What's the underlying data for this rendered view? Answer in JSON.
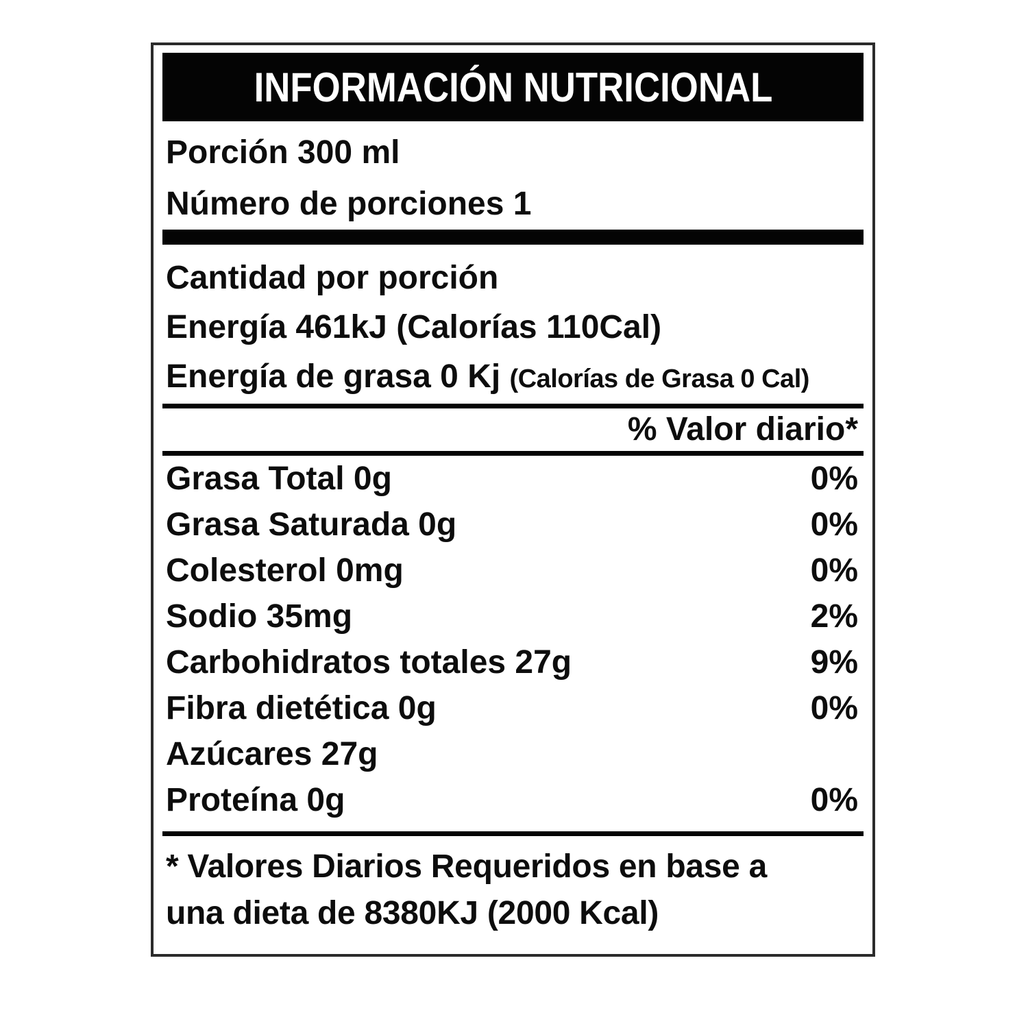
{
  "label": {
    "title": "INFORMACIÓN NUTRICIONAL",
    "serving": {
      "portion": "Porción 300 ml",
      "servings_count": "Número de porciones 1"
    },
    "amount_header": "Cantidad por porción",
    "energy_line": "Energía 461kJ (Calorías 110Cal)",
    "energy_fat_main": "Energía de grasa 0 Kj",
    "energy_fat_sub": "(Calorías de Grasa 0 Cal)",
    "dv_header": "% Valor diario*",
    "rows": [
      {
        "name": "Grasa Total 0g",
        "dv": "0%"
      },
      {
        "name": "Grasa Saturada 0g",
        "dv": "0%"
      },
      {
        "name": "Colesterol 0mg",
        "dv": "0%"
      },
      {
        "name": "Sodio 35mg",
        "dv": "2%"
      },
      {
        "name": "Carbohidratos totales 27g",
        "dv": "9%"
      },
      {
        "name": "Fibra dietética 0g",
        "dv": "0%"
      },
      {
        "name": "Azúcares 27g",
        "dv": ""
      },
      {
        "name": "Proteína 0g",
        "dv": "0%"
      }
    ],
    "footnote_line1": "* Valores Diarios Requeridos en base a",
    "footnote_line2": "una dieta de 8380KJ (2000 Kcal)",
    "colors": {
      "ink": "#0d0d0d",
      "paper": "#ffffff"
    }
  }
}
